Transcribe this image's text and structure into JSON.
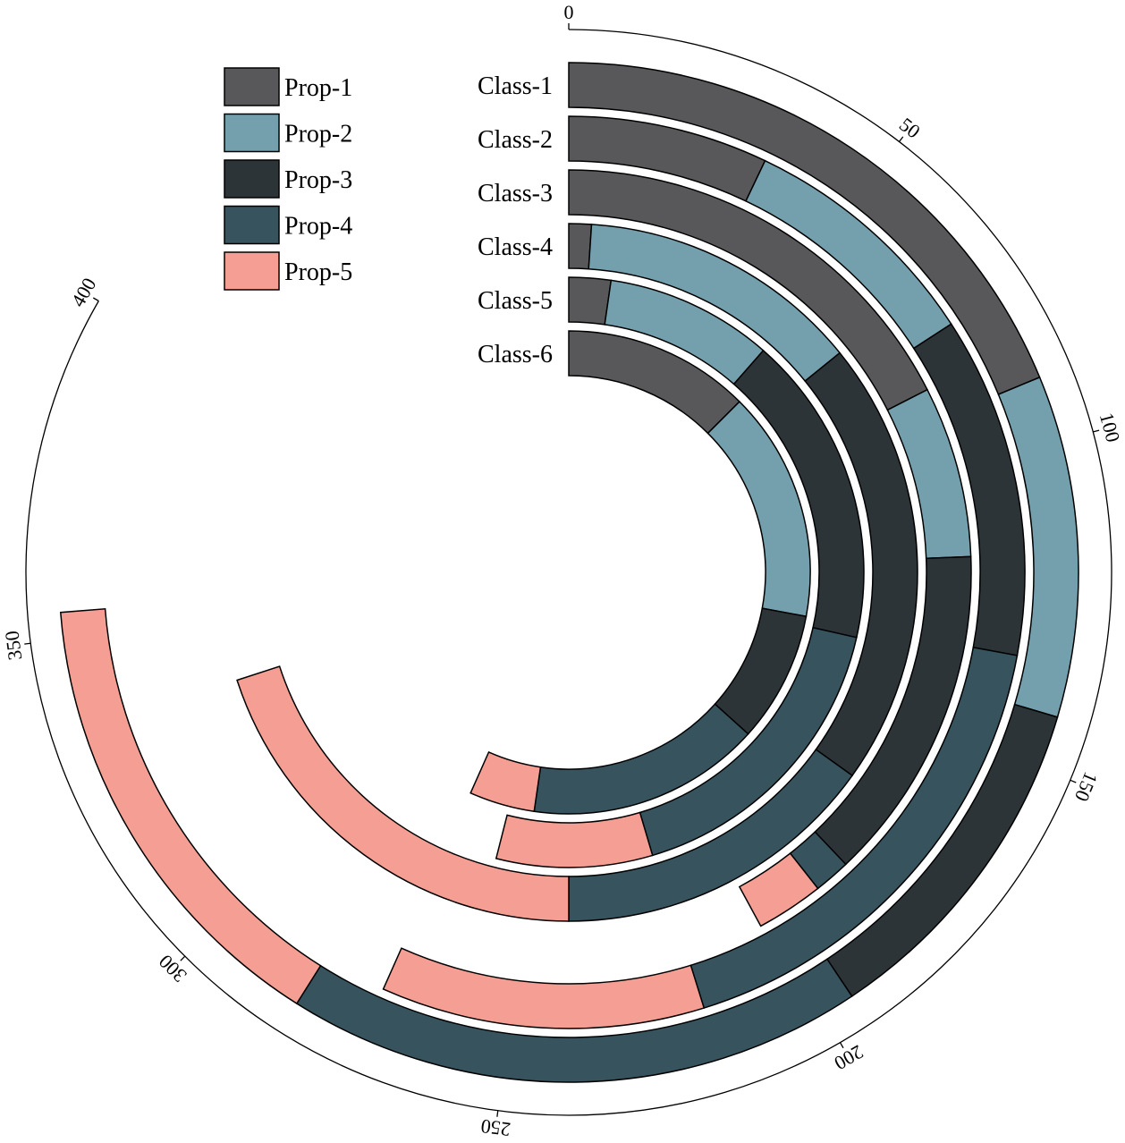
{
  "chart_data": {
    "type": "radial-stacked-bar",
    "categories": [
      "Class-1",
      "Class-2",
      "Class-3",
      "Class-4",
      "Class-5",
      "Class-6"
    ],
    "series": [
      {
        "name": "Prop-1",
        "color": "#58585a",
        "values": [
          90,
          34,
          84,
          5,
          11,
          60
        ]
      },
      {
        "name": "Prop-2",
        "color": "#74a0ae",
        "values": [
          52,
          42,
          33,
          63,
          44,
          74
        ]
      },
      {
        "name": "Prop-3",
        "color": "#2c3438",
        "values": [
          53,
          58,
          65,
          99.5,
          82,
          42
        ]
      },
      {
        "name": "Prop-4",
        "color": "#37535e",
        "values": [
          88,
          83,
          7,
          72.5,
          81,
          75
        ]
      },
      {
        "name": "Prop-5",
        "color": "#f59f94",
        "values": [
          71,
          55,
          13,
          96,
          41,
          21
        ]
      }
    ],
    "xlim": [
      0,
      400
    ],
    "xticks": [
      0,
      50,
      100,
      150,
      200,
      250,
      300,
      350,
      400
    ],
    "legend": "upper-left"
  }
}
